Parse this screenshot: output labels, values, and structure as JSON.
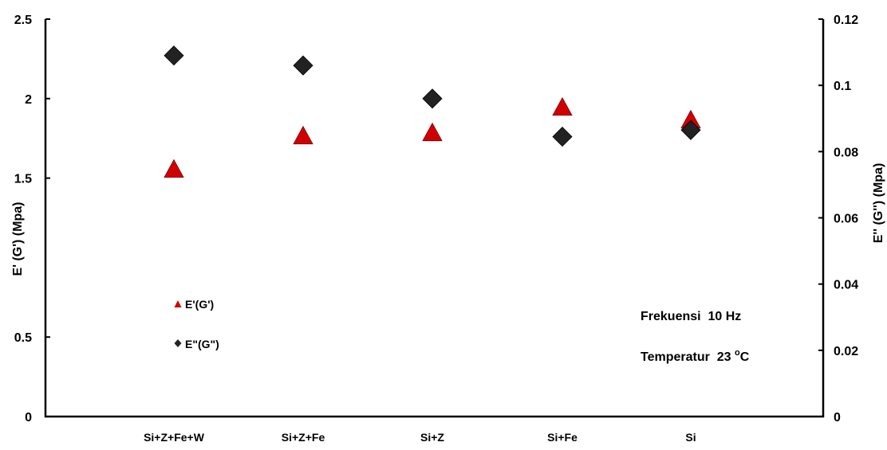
{
  "chart_data": {
    "type": "scatter",
    "categories": [
      "Si+Z+Fe+W",
      "Si+Z+Fe",
      "Si+Z",
      "Si+Fe",
      "Si"
    ],
    "series": [
      {
        "name": "E'(G')",
        "axis": "left",
        "marker": "triangle",
        "color": "#d10000",
        "values": [
          1.55,
          1.76,
          1.78,
          1.94,
          1.86
        ]
      },
      {
        "name": "E\"(G\")",
        "axis": "right",
        "marker": "diamond",
        "color": "#222222",
        "values": [
          0.109,
          0.106,
          0.096,
          0.0845,
          0.0865
        ]
      }
    ],
    "y_left": {
      "label": "E' (G') (Mpa)",
      "ylim": [
        0,
        2.5
      ],
      "ticks": [
        "0",
        "0.5",
        "1.5",
        "2",
        "2.5"
      ],
      "tick_values": [
        0,
        0.5,
        1.5,
        2,
        2.5
      ]
    },
    "y_right": {
      "label": "E'' (G'') (Mpa)",
      "ylim": [
        0,
        0.12
      ],
      "ticks": [
        "0",
        "0.02",
        "0.04",
        "0.06",
        "0.08",
        "0.1",
        "0.12"
      ],
      "tick_values": [
        0,
        0.02,
        0.04,
        0.06,
        0.08,
        0.1,
        0.12
      ]
    },
    "annotations": [
      "Frekuensi  10 Hz",
      "Temperatur  23 ",
      "o",
      "C"
    ],
    "legend_position": "lower-left",
    "grid": false
  }
}
